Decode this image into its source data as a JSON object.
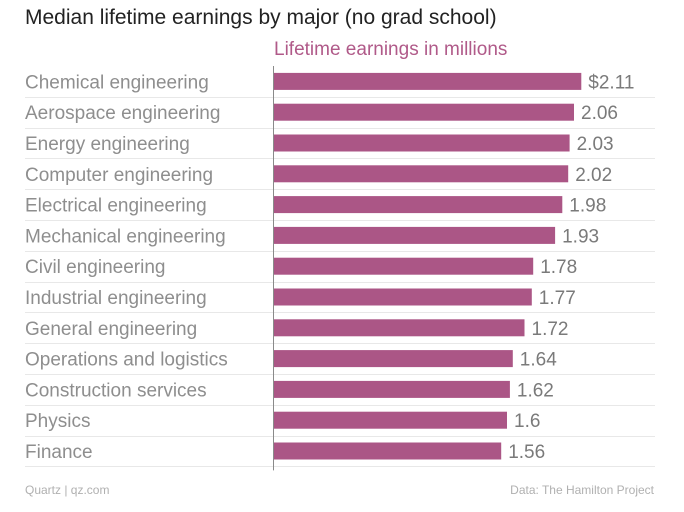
{
  "header": {
    "title": "Median lifetime earnings by major (no grad school)"
  },
  "colors": {
    "bar": "#ab5686",
    "subtitle": "#b05a89",
    "label": "#8e8e8e",
    "value": "#7a7a7a",
    "gridline": "#e8e8e8",
    "axis": "#8a8a8a"
  },
  "chart_data": {
    "type": "bar",
    "orientation": "horizontal",
    "title": "Median lifetime earnings by major (no grad school)",
    "subtitle": "Lifetime earnings in millions",
    "xlabel": "",
    "ylabel": "",
    "xlim": [
      0,
      2.4
    ],
    "value_prefix_first": "$",
    "categories": [
      "Chemical engineering",
      "Aerospace engineering",
      "Energy engineering",
      "Computer engineering",
      "Electrical engineering",
      "Mechanical engineering",
      "Civil engineering",
      "Industrial engineering",
      "General engineering",
      "Operations and logistics",
      "Construction services",
      "Physics",
      "Finance"
    ],
    "values": [
      2.11,
      2.06,
      2.03,
      2.02,
      1.98,
      1.93,
      1.78,
      1.77,
      1.72,
      1.64,
      1.62,
      1.6,
      1.56
    ],
    "value_labels": [
      "$2.11",
      "2.06",
      "2.03",
      "2.02",
      "1.98",
      "1.93",
      "1.78",
      "1.77",
      "1.72",
      "1.64",
      "1.62",
      "1.6",
      "1.56"
    ]
  },
  "footer": {
    "source_left": "Quartz | qz.com",
    "source_right": "Data: The Hamilton Project"
  }
}
